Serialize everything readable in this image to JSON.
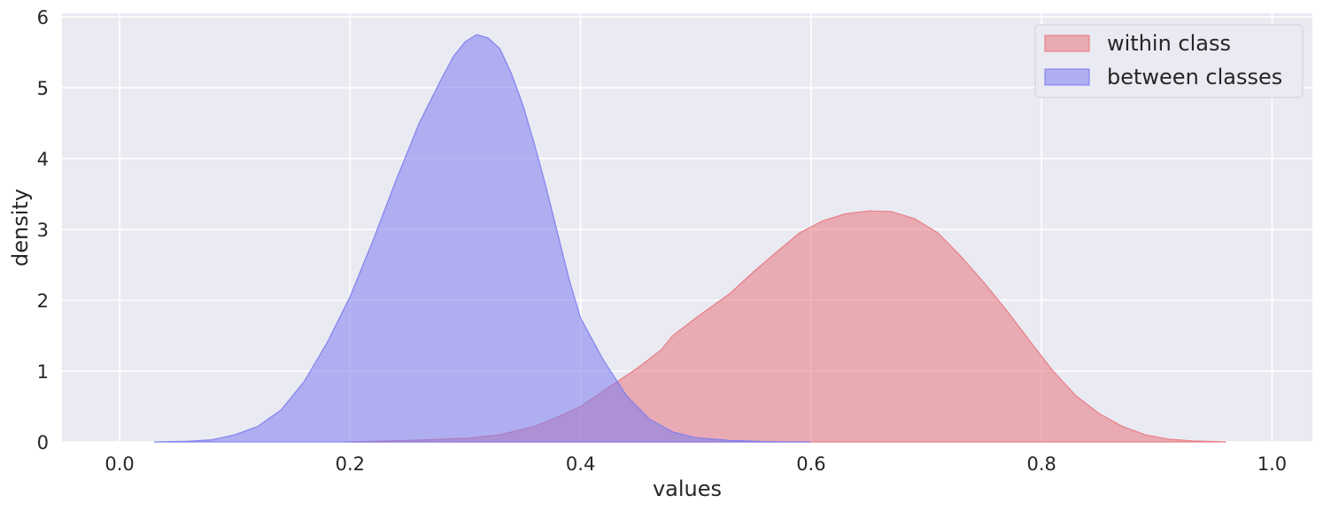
{
  "chart_data": {
    "type": "area",
    "xlabel": "values",
    "ylabel": "density",
    "xlim": [
      -0.05,
      1.035
    ],
    "ylim": [
      0,
      6.05
    ],
    "x_ticks": [
      0.0,
      0.2,
      0.4,
      0.6,
      0.8,
      1.0
    ],
    "x_tick_labels": [
      "0.0",
      "0.2",
      "0.4",
      "0.6",
      "0.8",
      "1.0"
    ],
    "y_ticks": [
      0,
      1,
      2,
      3,
      4,
      5,
      6
    ],
    "y_tick_labels": [
      "0",
      "1",
      "2",
      "3",
      "4",
      "5",
      "6"
    ],
    "grid": true,
    "legend_position": "top-right",
    "series": [
      {
        "name": "within class",
        "color": "#e8777f",
        "points": [
          [
            0.2,
            0.0
          ],
          [
            0.25,
            0.02
          ],
          [
            0.3,
            0.05
          ],
          [
            0.33,
            0.1
          ],
          [
            0.36,
            0.22
          ],
          [
            0.38,
            0.35
          ],
          [
            0.4,
            0.5
          ],
          [
            0.42,
            0.72
          ],
          [
            0.45,
            1.05
          ],
          [
            0.47,
            1.3
          ],
          [
            0.48,
            1.5
          ],
          [
            0.5,
            1.75
          ],
          [
            0.53,
            2.1
          ],
          [
            0.55,
            2.4
          ],
          [
            0.57,
            2.68
          ],
          [
            0.59,
            2.95
          ],
          [
            0.61,
            3.12
          ],
          [
            0.63,
            3.22
          ],
          [
            0.65,
            3.26
          ],
          [
            0.67,
            3.25
          ],
          [
            0.69,
            3.15
          ],
          [
            0.71,
            2.95
          ],
          [
            0.73,
            2.62
          ],
          [
            0.75,
            2.25
          ],
          [
            0.77,
            1.85
          ],
          [
            0.79,
            1.42
          ],
          [
            0.81,
            1.0
          ],
          [
            0.83,
            0.65
          ],
          [
            0.85,
            0.4
          ],
          [
            0.87,
            0.22
          ],
          [
            0.89,
            0.1
          ],
          [
            0.91,
            0.04
          ],
          [
            0.93,
            0.015
          ],
          [
            0.96,
            0.0
          ]
        ]
      },
      {
        "name": "between classes",
        "color": "#7b7bf0",
        "points": [
          [
            0.03,
            0.0
          ],
          [
            0.06,
            0.01
          ],
          [
            0.08,
            0.03
          ],
          [
            0.1,
            0.1
          ],
          [
            0.12,
            0.22
          ],
          [
            0.14,
            0.45
          ],
          [
            0.16,
            0.85
          ],
          [
            0.18,
            1.4
          ],
          [
            0.2,
            2.05
          ],
          [
            0.22,
            2.85
          ],
          [
            0.24,
            3.7
          ],
          [
            0.26,
            4.5
          ],
          [
            0.28,
            5.15
          ],
          [
            0.29,
            5.45
          ],
          [
            0.3,
            5.65
          ],
          [
            0.31,
            5.75
          ],
          [
            0.32,
            5.7
          ],
          [
            0.33,
            5.55
          ],
          [
            0.34,
            5.2
          ],
          [
            0.35,
            4.75
          ],
          [
            0.36,
            4.2
          ],
          [
            0.37,
            3.6
          ],
          [
            0.38,
            2.95
          ],
          [
            0.39,
            2.3
          ],
          [
            0.4,
            1.75
          ],
          [
            0.42,
            1.15
          ],
          [
            0.44,
            0.65
          ],
          [
            0.46,
            0.32
          ],
          [
            0.48,
            0.14
          ],
          [
            0.5,
            0.06
          ],
          [
            0.53,
            0.02
          ],
          [
            0.56,
            0.005
          ],
          [
            0.6,
            0.0
          ]
        ]
      }
    ]
  }
}
